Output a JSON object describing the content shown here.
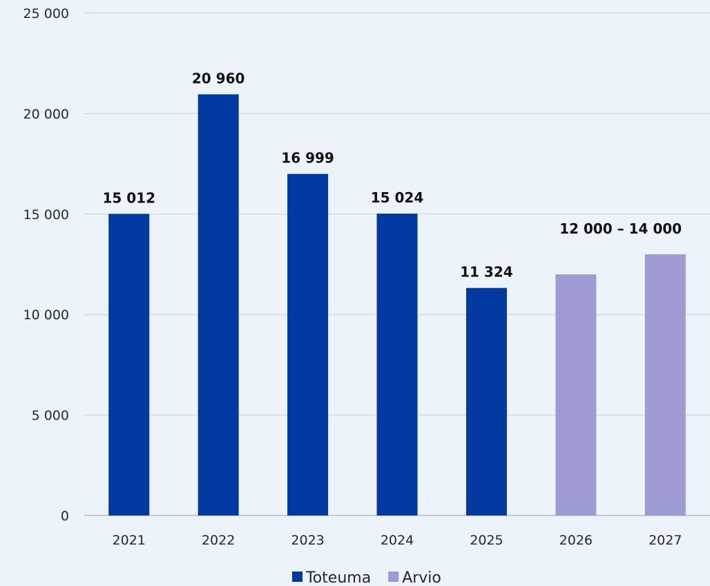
{
  "chart_data": {
    "type": "bar",
    "categories": [
      "2021",
      "2022",
      "2023",
      "2024",
      "2025",
      "2026",
      "2027"
    ],
    "values": [
      15012,
      20960,
      16999,
      15024,
      11324,
      12000,
      13000
    ],
    "series_assignment": [
      "Toteuma",
      "Toteuma",
      "Toteuma",
      "Toteuma",
      "Toteuma",
      "Arvio",
      "Arvio"
    ],
    "series": [
      {
        "name": "Toteuma",
        "color": "#0039a0"
      },
      {
        "name": "Arvio",
        "color": "#9e9ad2"
      }
    ],
    "data_labels": [
      {
        "category": "2021",
        "text": "15 012"
      },
      {
        "category": "2022",
        "text": "20 960"
      },
      {
        "category": "2023",
        "text": "16 999"
      },
      {
        "category": "2024",
        "text": "15 024"
      },
      {
        "category": "2025",
        "text": "11 324"
      },
      {
        "span": [
          "2026",
          "2027"
        ],
        "text": "12 000 – 14 000"
      }
    ],
    "ylim": [
      0,
      25000
    ],
    "yticks": [
      {
        "value": 0,
        "label": "0"
      },
      {
        "value": 5000,
        "label": "5 000"
      },
      {
        "value": 10000,
        "label": "10 000"
      },
      {
        "value": 15000,
        "label": "15 000"
      },
      {
        "value": 20000,
        "label": "20 000"
      },
      {
        "value": 25000,
        "label": "25 000"
      }
    ],
    "title": "",
    "xlabel": "",
    "ylabel": "",
    "grid": true,
    "legend_position": "bottom"
  }
}
